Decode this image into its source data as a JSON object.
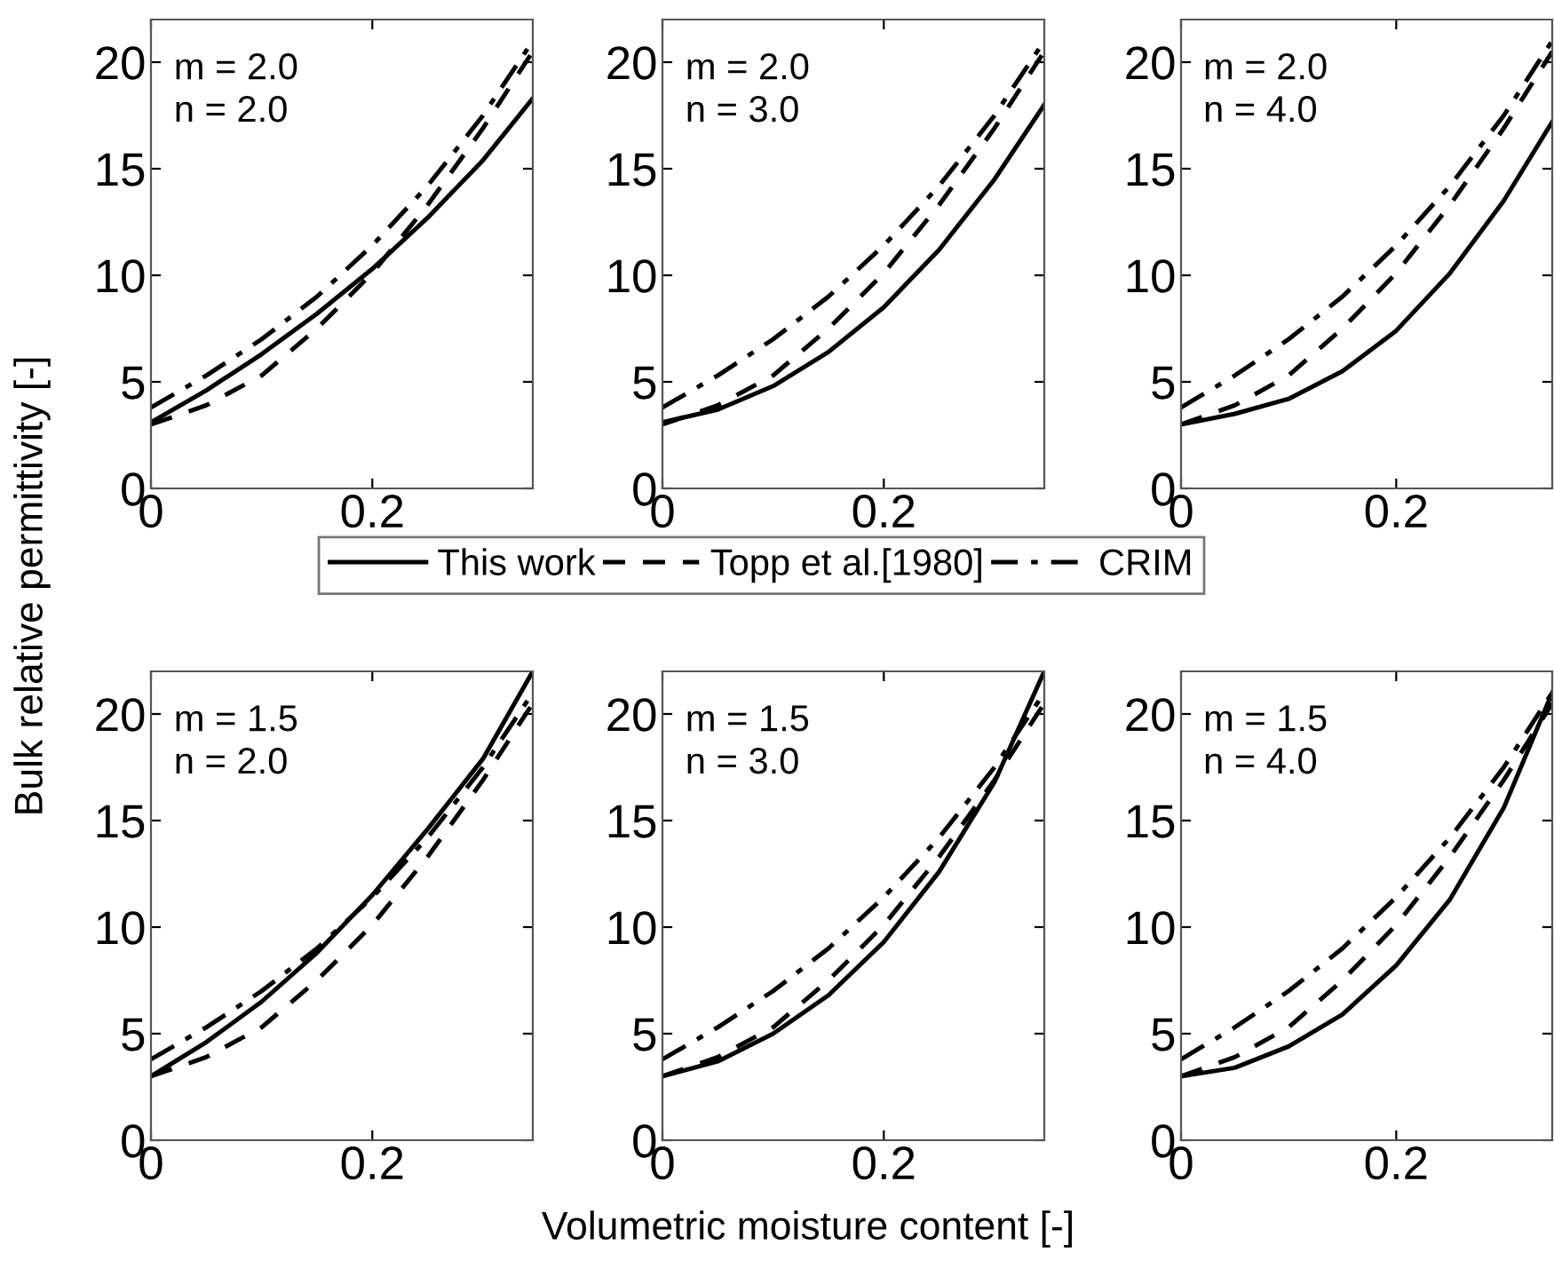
{
  "chart_data": [
    {
      "type": "line",
      "x": [
        0,
        0.05,
        0.1,
        0.15,
        0.2,
        0.25,
        0.3,
        0.345
      ],
      "xlim": [
        0,
        0.345
      ],
      "ylim": [
        0,
        22
      ],
      "xticks": [
        0,
        0.2
      ],
      "yticks": [
        0,
        5,
        10,
        15,
        20
      ],
      "ylabel": "Bulk relative permittivity [-]",
      "annotations": [
        "m = 2.0\nn = 2.0"
      ],
      "legend": "bottom",
      "grid": false,
      "series": [
        {
          "name": "This work",
          "color": "#000000",
          "line_style": "solid",
          "values": [
            3.1,
            4.6,
            6.3,
            8.2,
            10.3,
            12.7,
            15.4,
            18.3
          ]
        },
        {
          "name": "Topp et al.[1980]",
          "color": "#000000",
          "line_style": "dashed",
          "values": [
            3.0,
            3.9,
            5.3,
            7.5,
            10.1,
            13.3,
            16.9,
            20.5
          ]
        },
        {
          "name": "CRIM",
          "color": "#000000",
          "line_style": "dashdot",
          "values": [
            3.8,
            5.3,
            7.0,
            9.0,
            11.4,
            14.2,
            17.5,
            21.0
          ]
        }
      ]
    },
    {
      "type": "line",
      "x": [
        0,
        0.05,
        0.1,
        0.15,
        0.2,
        0.25,
        0.3,
        0.345
      ],
      "xlim": [
        0,
        0.345
      ],
      "ylim": [
        0,
        22
      ],
      "xticks": [
        0,
        0.2
      ],
      "yticks": [
        0,
        5,
        10,
        15,
        20
      ],
      "annotations": [
        "m = 2.0\nn = 3.0"
      ],
      "grid": false,
      "series": [
        {
          "color": "#000000",
          "line_style": "solid",
          "values": [
            3.1,
            3.7,
            4.8,
            6.4,
            8.5,
            11.2,
            14.5,
            18.0
          ]
        },
        {
          "color": "#000000",
          "line_style": "dashed",
          "values": [
            3.0,
            3.9,
            5.3,
            7.5,
            10.1,
            13.3,
            16.9,
            20.5
          ]
        },
        {
          "color": "#000000",
          "line_style": "dashdot",
          "values": [
            3.8,
            5.3,
            7.0,
            9.0,
            11.4,
            14.2,
            17.5,
            21.0
          ]
        }
      ]
    },
    {
      "type": "line",
      "x": [
        0,
        0.05,
        0.1,
        0.15,
        0.2,
        0.25,
        0.3,
        0.345
      ],
      "xlim": [
        0,
        0.345
      ],
      "ylim": [
        0,
        22
      ],
      "xticks": [
        0,
        0.2
      ],
      "yticks": [
        0,
        5,
        10,
        15,
        20
      ],
      "annotations": [
        "m = 2.0\nn = 4.0"
      ],
      "grid": false,
      "series": [
        {
          "color": "#000000",
          "line_style": "solid",
          "values": [
            3.0,
            3.5,
            4.2,
            5.5,
            7.4,
            10.1,
            13.5,
            17.2
          ]
        },
        {
          "color": "#000000",
          "line_style": "dashed",
          "values": [
            3.0,
            3.9,
            5.3,
            7.5,
            10.1,
            13.3,
            16.9,
            20.5
          ]
        },
        {
          "color": "#000000",
          "line_style": "dashdot",
          "values": [
            3.8,
            5.3,
            7.0,
            9.0,
            11.4,
            14.2,
            17.5,
            21.0
          ]
        }
      ]
    },
    {
      "type": "line",
      "x": [
        0,
        0.05,
        0.1,
        0.15,
        0.2,
        0.25,
        0.3,
        0.345
      ],
      "xlim": [
        0,
        0.345
      ],
      "ylim": [
        0,
        22
      ],
      "xticks": [
        0,
        0.2
      ],
      "yticks": [
        0,
        5,
        10,
        15,
        20
      ],
      "annotations": [
        "m = 1.5\nn = 2.0"
      ],
      "grid": false,
      "series": [
        {
          "color": "#000000",
          "line_style": "solid",
          "values": [
            3.0,
            4.6,
            6.5,
            8.8,
            11.5,
            14.6,
            17.9,
            22.0
          ]
        },
        {
          "color": "#000000",
          "line_style": "dashed",
          "values": [
            3.0,
            3.9,
            5.3,
            7.5,
            10.1,
            13.3,
            16.9,
            20.5
          ]
        },
        {
          "color": "#000000",
          "line_style": "dashdot",
          "values": [
            3.8,
            5.3,
            7.0,
            9.0,
            11.4,
            14.2,
            17.5,
            21.0
          ]
        }
      ]
    },
    {
      "type": "line",
      "x": [
        0,
        0.05,
        0.1,
        0.15,
        0.2,
        0.25,
        0.3,
        0.345
      ],
      "xlim": [
        0,
        0.345
      ],
      "ylim": [
        0,
        22
      ],
      "xticks": [
        0,
        0.2
      ],
      "yticks": [
        0,
        5,
        10,
        15,
        20
      ],
      "xlabel": "Volumetric moisture content [-]",
      "annotations": [
        "m = 1.5\nn = 3.0"
      ],
      "grid": false,
      "series": [
        {
          "color": "#000000",
          "line_style": "solid",
          "values": [
            3.0,
            3.7,
            5.0,
            6.8,
            9.3,
            12.6,
            16.8,
            22.0
          ]
        },
        {
          "color": "#000000",
          "line_style": "dashed",
          "values": [
            3.0,
            3.9,
            5.3,
            7.5,
            10.1,
            13.3,
            16.9,
            20.5
          ]
        },
        {
          "color": "#000000",
          "line_style": "dashdot",
          "values": [
            3.8,
            5.3,
            7.0,
            9.0,
            11.4,
            14.2,
            17.5,
            21.0
          ]
        }
      ]
    },
    {
      "type": "line",
      "x": [
        0,
        0.05,
        0.1,
        0.15,
        0.2,
        0.25,
        0.3,
        0.345
      ],
      "xlim": [
        0,
        0.345
      ],
      "ylim": [
        0,
        22
      ],
      "xticks": [
        0,
        0.2
      ],
      "yticks": [
        0,
        5,
        10,
        15,
        20
      ],
      "annotations": [
        "m = 1.5\nn = 4.0"
      ],
      "grid": false,
      "series": [
        {
          "color": "#000000",
          "line_style": "solid",
          "values": [
            3.0,
            3.4,
            4.4,
            5.9,
            8.2,
            11.3,
            15.6,
            21.0
          ]
        },
        {
          "color": "#000000",
          "line_style": "dashed",
          "values": [
            3.0,
            3.9,
            5.3,
            7.5,
            10.1,
            13.3,
            16.9,
            20.5
          ]
        },
        {
          "color": "#000000",
          "line_style": "dashdot",
          "values": [
            3.8,
            5.3,
            7.0,
            9.0,
            11.4,
            14.2,
            17.5,
            21.0
          ]
        }
      ]
    }
  ]
}
